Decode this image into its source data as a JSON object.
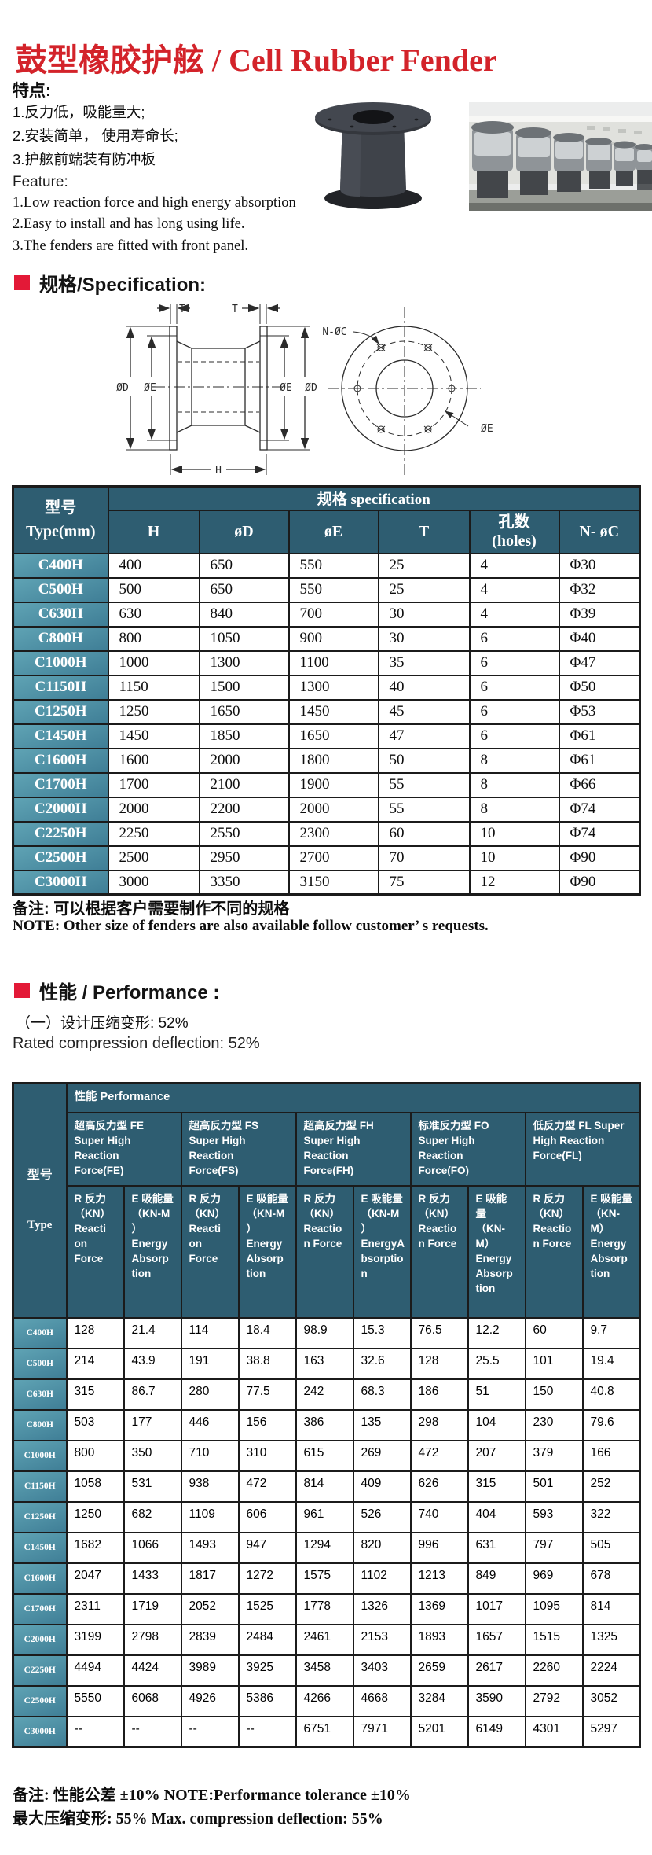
{
  "title": "鼓型橡胶护舷 / Cell Rubber Fender",
  "features": {
    "heading_cn": "特点:",
    "items_cn": [
      "1.反力低，吸能量大;",
      "2.安装简单， 使用寿命长;",
      "3.护舷前端装有防冲板"
    ],
    "heading_en": "Feature:",
    "items_en": [
      "1.Low reaction force and high energy absorption",
      "2.Easy to install and has long using life.",
      "3.The fenders are fitted with front panel."
    ]
  },
  "spec_section": {
    "heading": "规格/Specification:",
    "drawing": {
      "t_left": "T",
      "t_right": "T",
      "od_left": "ØD",
      "oe_left": "ØE",
      "oe_right": "ØE",
      "od_right": "ØD",
      "h": "H",
      "n_oc": "N-ØC",
      "oe_front": "ØE"
    }
  },
  "spec_table": {
    "model_header": "型号\nType(mm)",
    "span_header": "规格  specification",
    "columns": [
      "H",
      "øD",
      "øE",
      "T",
      "孔数\n(holes)",
      "N- øC"
    ],
    "rows": [
      {
        "model": "C400H",
        "values": [
          "400",
          "650",
          "550",
          "25",
          "4",
          "Φ30"
        ]
      },
      {
        "model": "C500H",
        "values": [
          "500",
          "650",
          "550",
          "25",
          "4",
          "Φ32"
        ]
      },
      {
        "model": "C630H",
        "values": [
          "630",
          "840",
          "700",
          "30",
          "4",
          "Φ39"
        ]
      },
      {
        "model": "C800H",
        "values": [
          "800",
          "1050",
          "900",
          "30",
          "6",
          "Φ40"
        ]
      },
      {
        "model": "C1000H",
        "values": [
          "1000",
          "1300",
          "1100",
          "35",
          "6",
          "Φ47"
        ]
      },
      {
        "model": "C1150H",
        "values": [
          "1150",
          "1500",
          "1300",
          "40",
          "6",
          "Φ50"
        ]
      },
      {
        "model": "C1250H",
        "values": [
          "1250",
          "1650",
          "1450",
          "45",
          "6",
          "Φ53"
        ]
      },
      {
        "model": "C1450H",
        "values": [
          "1450",
          "1850",
          "1650",
          "47",
          "6",
          "Φ61"
        ]
      },
      {
        "model": "C1600H",
        "values": [
          "1600",
          "2000",
          "1800",
          "50",
          "8",
          "Φ61"
        ]
      },
      {
        "model": "C1700H",
        "values": [
          "1700",
          "2100",
          "1900",
          "55",
          "8",
          "Φ66"
        ]
      },
      {
        "model": "C2000H",
        "values": [
          "2000",
          "2200",
          "2000",
          "55",
          "8",
          "Φ74"
        ]
      },
      {
        "model": "C2250H",
        "values": [
          "2250",
          "2550",
          "2300",
          "60",
          "10",
          "Φ74"
        ]
      },
      {
        "model": "C2500H",
        "values": [
          "2500",
          "2950",
          "2700",
          "70",
          "10",
          "Φ90"
        ]
      },
      {
        "model": "C3000H",
        "values": [
          "3000",
          "3350",
          "3150",
          "75",
          "12",
          "Φ90"
        ]
      }
    ]
  },
  "spec_notes": {
    "cn": "备注: 可以根据客户需要制作不同的规格",
    "en": "NOTE: Other size of fenders are also available follow customer’ s requests."
  },
  "performance_section": {
    "heading": "性能 / Performance :",
    "line_cn": "（一）设计压缩变形:  52%",
    "line_en": "Rated compression deflection:  52%"
  },
  "performance_table": {
    "model_header_cn": "型号",
    "model_header_en": "Type",
    "span_header": "性能  Performance",
    "groups": [
      "超高反力型 FE\nSuper High\nReaction\nForce(FE)",
      "超高反力型 FS\nSuper High\nReaction\nForce(FS)",
      "超高反力型 FH\nSuper High\nReaction\nForce(FH)",
      "标准反力型 FO\nSuper High\nReaction\nForce(FO)",
      "低反力型 FL Super\nHigh Reaction\nForce(FL)"
    ],
    "sub_columns": [
      "R 反力\n（KN）\nReacti\non\nForce",
      "E 吸能量\n（KN-M\n）\nEnergy\nAbsorp\ntion",
      "R 反力\n（KN）\nReacti\non\nForce",
      "E 吸能量\n（KN-M\n）\nEnergy\nAbsorp\ntion",
      "R 反力\n（KN）\nReactio\nn Force",
      "E 吸能量\n（KN-M\n）\nEnergyA\nbsorptio\nn",
      "R 反力\n（KN）\nReactio\nn Force",
      "E 吸能\n量\n（KN-\nM）\nEnergy\nAbsorp\ntion",
      "R 反力\n（KN）\nReactio\nn Force",
      "E 吸能量\n（KN-\nM）\nEnergy\nAbsorp\ntion"
    ],
    "rows": [
      {
        "model": "C400H",
        "values": [
          "128",
          "21.4",
          "114",
          "18.4",
          "98.9",
          "15.3",
          "76.5",
          "12.2",
          "60",
          "9.7"
        ]
      },
      {
        "model": "C500H",
        "values": [
          "214",
          "43.9",
          "191",
          "38.8",
          "163",
          "32.6",
          "128",
          "25.5",
          "101",
          "19.4"
        ]
      },
      {
        "model": "C630H",
        "values": [
          "315",
          "86.7",
          "280",
          "77.5",
          "242",
          "68.3",
          "186",
          "51",
          "150",
          "40.8"
        ]
      },
      {
        "model": "C800H",
        "values": [
          "503",
          "177",
          "446",
          "156",
          "386",
          "135",
          "298",
          "104",
          "230",
          "79.6"
        ]
      },
      {
        "model": "C1000H",
        "values": [
          "800",
          "350",
          "710",
          "310",
          "615",
          "269",
          "472",
          "207",
          "379",
          "166"
        ]
      },
      {
        "model": "C1150H",
        "values": [
          "1058",
          "531",
          "938",
          "472",
          "814",
          "409",
          "626",
          "315",
          "501",
          "252"
        ]
      },
      {
        "model": "C1250H",
        "values": [
          "1250",
          "682",
          "1109",
          "606",
          "961",
          "526",
          "740",
          "404",
          "593",
          "322"
        ]
      },
      {
        "model": "C1450H",
        "values": [
          "1682",
          "1066",
          "1493",
          "947",
          "1294",
          "820",
          "996",
          "631",
          "797",
          "505"
        ]
      },
      {
        "model": "C1600H",
        "values": [
          "2047",
          "1433",
          "1817",
          "1272",
          "1575",
          "1102",
          "1213",
          "849",
          "969",
          "678"
        ]
      },
      {
        "model": "C1700H",
        "values": [
          "2311",
          "1719",
          "2052",
          "1525",
          "1778",
          "1326",
          "1369",
          "1017",
          "1095",
          "814"
        ]
      },
      {
        "model": "C2000H",
        "values": [
          "3199",
          "2798",
          "2839",
          "2484",
          "2461",
          "2153",
          "1893",
          "1657",
          "1515",
          "1325"
        ]
      },
      {
        "model": "C2250H",
        "values": [
          "4494",
          "4424",
          "3989",
          "3925",
          "3458",
          "3403",
          "2659",
          "2617",
          "2260",
          "2224"
        ]
      },
      {
        "model": "C2500H",
        "values": [
          "5550",
          "6068",
          "4926",
          "5386",
          "4266",
          "4668",
          "3284",
          "3590",
          "2792",
          "3052"
        ]
      },
      {
        "model": "C3000H",
        "values": [
          "--",
          "--",
          "--",
          "--",
          "6751",
          "7971",
          "5201",
          "6149",
          "4301",
          "5297"
        ]
      }
    ]
  },
  "footer_notes": {
    "line1": "备注:  性能公差 ±10%  NOTE:Performance tolerance ±10%",
    "line2": "最大压缩变形:  55%   Max. compression deflection:  55%"
  },
  "colors": {
    "title_red": "#d3232a",
    "bullet_red": "#e31937",
    "header_teal": "#2e5d71",
    "row_label_teal": "#4e8fa2"
  }
}
